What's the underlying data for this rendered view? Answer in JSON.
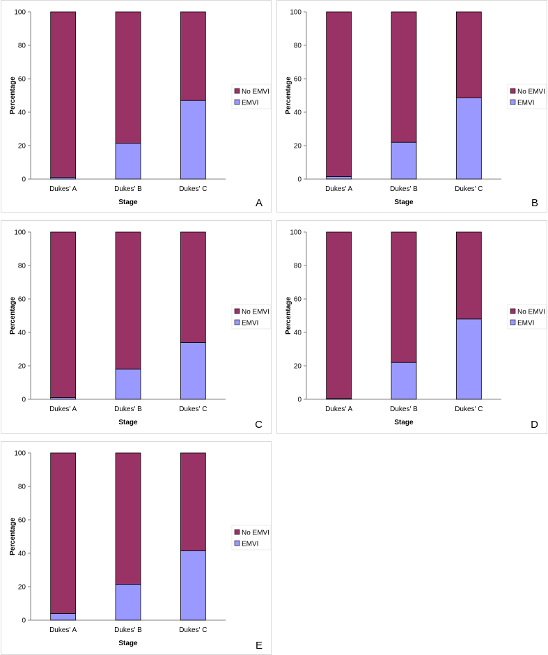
{
  "colors": {
    "no_emvi": "#993366",
    "emvi": "#9999FF",
    "axis": "#808080"
  },
  "chart_data": [
    {
      "type": "bar",
      "stacked": true,
      "panel_label": "A",
      "categories": [
        "Dukes' A",
        "Dukes' B",
        "Dukes' C"
      ],
      "series": [
        {
          "name": "EMVI",
          "values": [
            1,
            21.5,
            47
          ]
        },
        {
          "name": "No EMVI",
          "values": [
            99,
            78.5,
            53
          ]
        }
      ],
      "xlabel": "Stage",
      "ylabel": "Percentage",
      "ylim": [
        0,
        100
      ],
      "yticks": [
        "0",
        "20",
        "40",
        "60",
        "80",
        "100"
      ],
      "legend": [
        "No EMVI",
        "EMVI"
      ],
      "legend_position": "right"
    },
    {
      "type": "bar",
      "stacked": true,
      "panel_label": "B",
      "categories": [
        "Dukes' A",
        "Dukes' B",
        "Dukes' C"
      ],
      "series": [
        {
          "name": "EMVI",
          "values": [
            1.5,
            22,
            48.5
          ]
        },
        {
          "name": "No EMVI",
          "values": [
            98.5,
            78,
            51.5
          ]
        }
      ],
      "xlabel": "Stage",
      "ylabel": "Percentage",
      "ylim": [
        0,
        100
      ],
      "yticks": [
        "0",
        "20",
        "40",
        "60",
        "80",
        "100"
      ],
      "legend": [
        "No EMVI",
        "EMVI"
      ],
      "legend_position": "right"
    },
    {
      "type": "bar",
      "stacked": true,
      "panel_label": "C",
      "categories": [
        "Dukes' A",
        "Dukes' B",
        "Dukes' C"
      ],
      "series": [
        {
          "name": "EMVI",
          "values": [
            1,
            18,
            34
          ]
        },
        {
          "name": "No EMVI",
          "values": [
            99,
            82,
            66
          ]
        }
      ],
      "xlabel": "Stage",
      "ylabel": "Percentage",
      "ylim": [
        0,
        100
      ],
      "yticks": [
        "0",
        "20",
        "40",
        "60",
        "80",
        "100"
      ],
      "legend": [
        "No EMVI",
        "EMVI"
      ],
      "legend_position": "right"
    },
    {
      "type": "bar",
      "stacked": true,
      "panel_label": "D",
      "categories": [
        "Dukes' A",
        "Dukes' B",
        "Dukes' C"
      ],
      "series": [
        {
          "name": "EMVI",
          "values": [
            0.5,
            22,
            48
          ]
        },
        {
          "name": "No EMVI",
          "values": [
            99.5,
            78,
            52
          ]
        }
      ],
      "xlabel": "Stage",
      "ylabel": "Percentage",
      "ylim": [
        0,
        100
      ],
      "yticks": [
        "0",
        "20",
        "40",
        "60",
        "80",
        "100"
      ],
      "legend": [
        "No EMVI",
        "EMVI"
      ],
      "legend_position": "right"
    },
    {
      "type": "bar",
      "stacked": true,
      "panel_label": "E",
      "categories": [
        "Dukes' A",
        "Dukes' B",
        "Dukes' C"
      ],
      "series": [
        {
          "name": "EMVI",
          "values": [
            4,
            21.5,
            41.5
          ]
        },
        {
          "name": "No EMVI",
          "values": [
            96,
            78.5,
            58.5
          ]
        }
      ],
      "xlabel": "Stage",
      "ylabel": "Percentage",
      "ylim": [
        0,
        100
      ],
      "yticks": [
        "0",
        "20",
        "40",
        "60",
        "80",
        "100"
      ],
      "legend": [
        "No EMVI",
        "EMVI"
      ],
      "legend_position": "right"
    }
  ]
}
